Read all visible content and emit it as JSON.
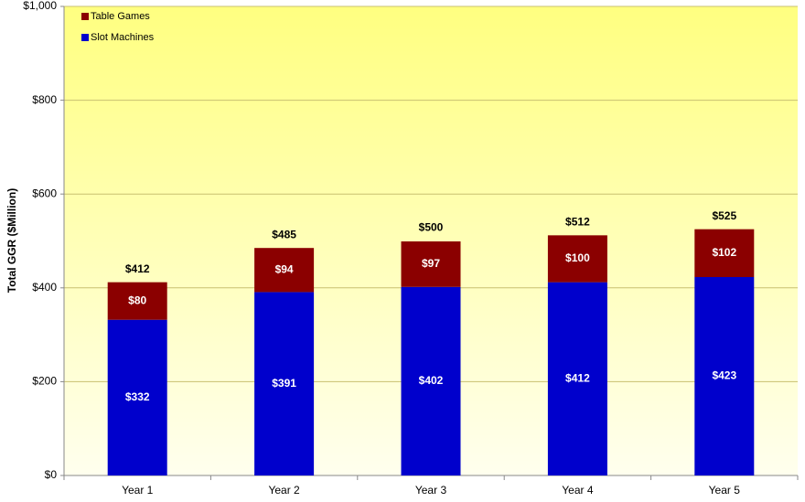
{
  "chart_data": {
    "type": "stacked_bar",
    "y_axis_label": "Total GGR ($Million)",
    "categories": [
      "Year 1",
      "Year 2",
      "Year 3",
      "Year 4",
      "Year 5"
    ],
    "series": [
      {
        "name": "Slot Machines",
        "color": "#0000cc",
        "values": [
          332,
          391,
          402,
          412,
          423
        ],
        "value_labels": [
          "$332",
          "$391",
          "$402",
          "$412",
          "$423"
        ]
      },
      {
        "name": "Table Games",
        "color": "#8b0000",
        "values": [
          80,
          94,
          97,
          100,
          102
        ],
        "value_labels": [
          "$80",
          "$94",
          "$97",
          "$100",
          "$102"
        ]
      }
    ],
    "totals": {
      "values": [
        412,
        485,
        500,
        512,
        525
      ],
      "value_labels": [
        "$412",
        "$485",
        "$500",
        "$512",
        "$525"
      ]
    },
    "ylim": [
      0,
      1000
    ],
    "yticks": [
      {
        "value": 0,
        "label": "$0"
      },
      {
        "value": 200,
        "label": "$200"
      },
      {
        "value": 400,
        "label": "$400"
      },
      {
        "value": 600,
        "label": "$600"
      },
      {
        "value": 800,
        "label": "$800"
      },
      {
        "value": 1000,
        "label": "$1,000"
      }
    ],
    "grid": true
  }
}
